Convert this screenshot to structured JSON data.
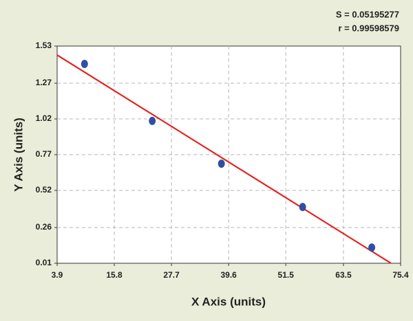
{
  "chart_data": {
    "type": "scatter",
    "annotations": [
      "S = 0.05195277",
      "r = 0.99598579"
    ],
    "x_label": "X Axis (units)",
    "y_label": "Y Axis (units)",
    "x": [
      9.6,
      23.7,
      38.1,
      55.0,
      69.4
    ],
    "values": [
      1.405,
      1.006,
      0.707,
      0.404,
      0.12
    ],
    "color": "#2f4fa6",
    "fit_line": {
      "x": [
        3.9,
        73.4
      ],
      "values": [
        1.467,
        0.01
      ],
      "color": "#e3231f"
    },
    "xlim": [
      3.9,
      75.4
    ],
    "xticks": [
      3.9,
      15.8,
      27.7,
      39.6,
      51.5,
      63.5,
      75.4
    ],
    "ylim": [
      0.01,
      1.53
    ],
    "yticks": [
      0.01,
      0.26,
      0.52,
      0.77,
      1.02,
      1.27,
      1.53
    ],
    "grid": true
  }
}
